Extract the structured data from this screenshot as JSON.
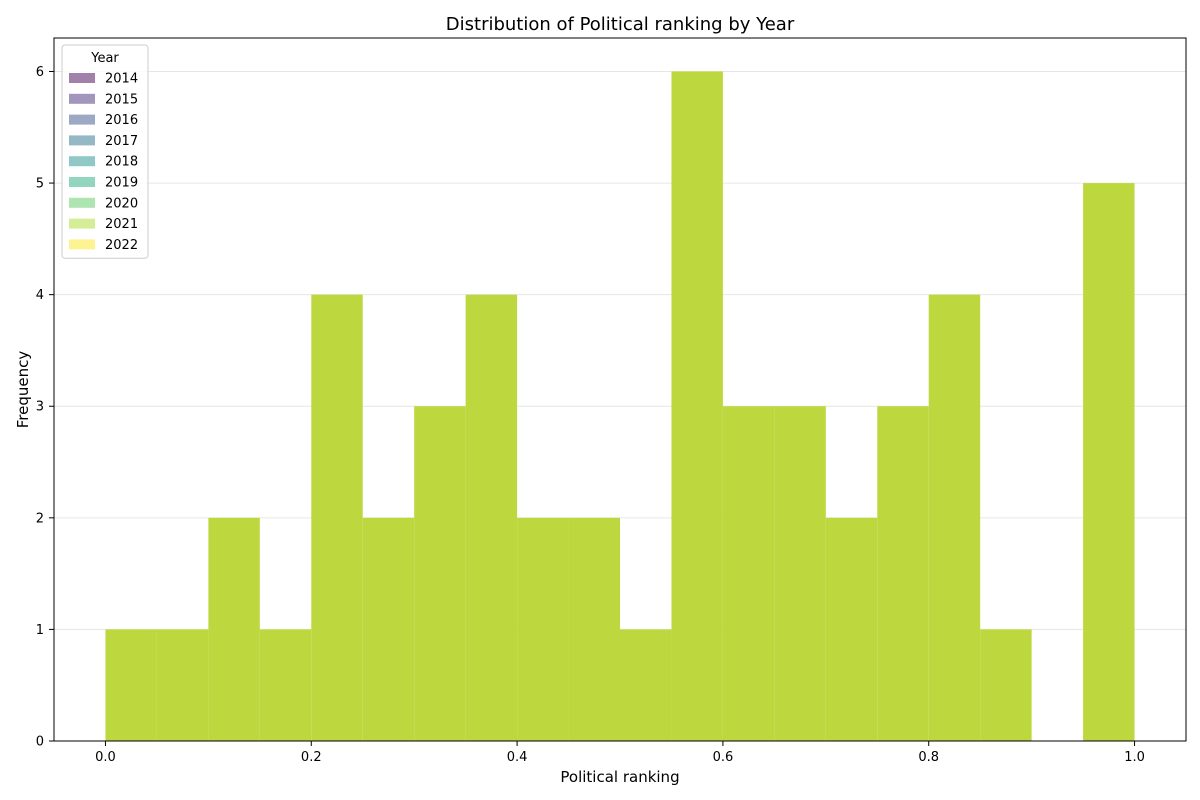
{
  "chart_data": {
    "type": "bar",
    "title": "Distribution of Political ranking by Year",
    "xlabel": "Political ranking",
    "ylabel": "Frequency",
    "xlim": [
      -0.05,
      1.05
    ],
    "ylim": [
      0,
      6.3
    ],
    "xticks": [
      0.0,
      0.2,
      0.4,
      0.6,
      0.8,
      1.0
    ],
    "xtick_labels": [
      "0.0",
      "0.2",
      "0.4",
      "0.6",
      "0.8",
      "1.0"
    ],
    "yticks": [
      0,
      1,
      2,
      3,
      4,
      5,
      6
    ],
    "ytick_labels": [
      "0",
      "1",
      "2",
      "3",
      "4",
      "5",
      "6"
    ],
    "grid": "y",
    "legend": {
      "title": "Year",
      "placement": "top-left",
      "entries": [
        {
          "label": "2014",
          "color": "#440154"
        },
        {
          "label": "2015",
          "color": "#472d7b"
        },
        {
          "label": "2016",
          "color": "#3b528b"
        },
        {
          "label": "2017",
          "color": "#2c728e"
        },
        {
          "label": "2018",
          "color": "#21918c"
        },
        {
          "label": "2019",
          "color": "#28ae80"
        },
        {
          "label": "2020",
          "color": "#5ec962"
        },
        {
          "label": "2021",
          "color": "#addc30"
        },
        {
          "label": "2022",
          "color": "#fde725"
        }
      ]
    },
    "bin_width": 0.05,
    "bins": [
      0.0,
      0.05,
      0.1,
      0.15,
      0.2,
      0.25,
      0.3,
      0.35,
      0.4,
      0.45,
      0.5,
      0.55,
      0.6,
      0.65,
      0.7,
      0.75,
      0.8,
      0.85,
      0.9,
      0.95
    ],
    "values": [
      1,
      1,
      2,
      1,
      4,
      2,
      3,
      4,
      2,
      2,
      1,
      6,
      3,
      3,
      2,
      3,
      4,
      1,
      0,
      5
    ],
    "bar_color": "#bdd83f"
  }
}
